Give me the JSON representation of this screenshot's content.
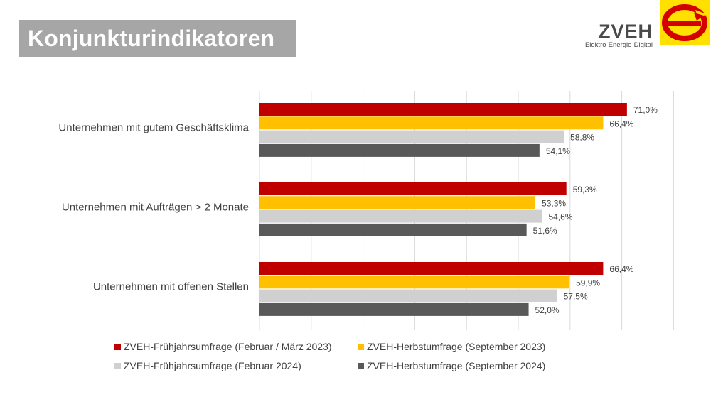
{
  "header": {
    "title": "Konjunkturindikatoren"
  },
  "logo": {
    "name": "ZVEH",
    "subtitle": "Elektro·Energie·Digital",
    "icon": "zveh-e-logo-icon"
  },
  "colors": {
    "accent_red": "#c00000",
    "accent_yellow": "#ffc000",
    "light_gray": "#d0d0d0",
    "dark_gray": "#595959"
  },
  "chart_data": {
    "type": "bar",
    "orientation": "horizontal",
    "categories": [
      "Unternehmen mit gutem Geschäftsklima",
      "Unternehmen mit Aufträgen > 2 Monate",
      "Unternehmen mit offenen Stellen"
    ],
    "series": [
      {
        "name": "ZVEH-Frühjahrsumfrage (Februar / März 2023)",
        "color": "#c00000",
        "values": [
          71.0,
          59.3,
          66.4
        ],
        "labels": [
          "71,0%",
          "59,3%",
          "66,4%"
        ]
      },
      {
        "name": "ZVEH-Herbstumfrage (September 2023)",
        "color": "#ffc000",
        "values": [
          66.4,
          53.3,
          59.9
        ],
        "labels": [
          "66,4%",
          "53,3%",
          "59,9%"
        ]
      },
      {
        "name": "ZVEH-Frühjahrsumfrage (Februar 2024)",
        "color": "#d0d0d0",
        "values": [
          58.8,
          54.6,
          57.5
        ],
        "labels": [
          "58,8%",
          "54,6%",
          "57,5%"
        ]
      },
      {
        "name": "ZVEH-Herbstumfrage (September 2024)",
        "color": "#595959",
        "values": [
          54.1,
          51.6,
          52.0
        ],
        "labels": [
          "54,1%",
          "51,6%",
          "52,0%"
        ]
      }
    ],
    "xlim": [
      0,
      80
    ],
    "grid": true,
    "legend_position": "bottom"
  }
}
